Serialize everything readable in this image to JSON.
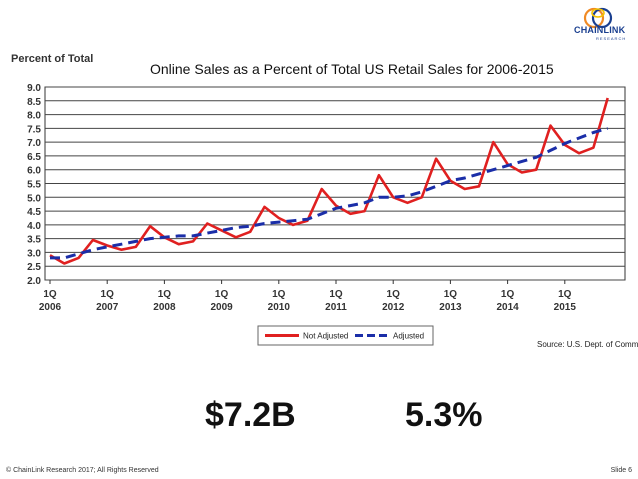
{
  "logo": {
    "text": "CHAINLINK",
    "subtext": "RESEARCH"
  },
  "chart_data": {
    "type": "line",
    "title": "Online Sales as a Percent of Total US Retail Sales for 2006-2015",
    "ylabel": "Percent of Total",
    "xlabel": "",
    "ylim": [
      2.0,
      9.0
    ],
    "yticks": [
      "9.0",
      "8.5",
      "8.0",
      "7.5",
      "7.0",
      "6.5",
      "6.0",
      "5.5",
      "5.0",
      "4.5",
      "4.0",
      "3.5",
      "3.0",
      "2.5",
      "2.0"
    ],
    "xticks": [
      {
        "q": "1Q",
        "year": "2006"
      },
      {
        "q": "1Q",
        "year": "2007"
      },
      {
        "q": "1Q",
        "year": "2008"
      },
      {
        "q": "1Q",
        "year": "2009"
      },
      {
        "q": "1Q",
        "year": "2010"
      },
      {
        "q": "1Q",
        "year": "2011"
      },
      {
        "q": "1Q",
        "year": "2012"
      },
      {
        "q": "1Q",
        "year": "2013"
      },
      {
        "q": "1Q",
        "year": "2014"
      },
      {
        "q": "1Q",
        "year": "2015"
      }
    ],
    "grid": true,
    "legend_position": "bottom-center",
    "series": [
      {
        "name": "Not Adjusted",
        "color": "#e02020",
        "style": "solid",
        "values": [
          2.9,
          2.6,
          2.8,
          3.45,
          3.25,
          3.1,
          3.2,
          3.95,
          3.55,
          3.3,
          3.4,
          4.05,
          3.8,
          3.55,
          3.75,
          4.65,
          4.25,
          4.0,
          4.15,
          5.3,
          4.7,
          4.4,
          4.5,
          5.8,
          5.0,
          4.8,
          5.0,
          6.4,
          5.6,
          5.3,
          5.4,
          7.0,
          6.2,
          5.9,
          6.0,
          7.6,
          6.9,
          6.6,
          6.8,
          8.6
        ]
      },
      {
        "name": "Adjusted",
        "color": "#1b2ea8",
        "style": "dashed",
        "values": [
          2.8,
          2.8,
          2.95,
          3.1,
          3.2,
          3.3,
          3.4,
          3.5,
          3.55,
          3.6,
          3.6,
          3.7,
          3.8,
          3.9,
          3.95,
          4.05,
          4.1,
          4.15,
          4.2,
          4.4,
          4.6,
          4.7,
          4.8,
          5.0,
          5.0,
          5.05,
          5.2,
          5.4,
          5.6,
          5.7,
          5.85,
          6.0,
          6.15,
          6.3,
          6.45,
          6.7,
          6.95,
          7.15,
          7.35,
          7.5
        ]
      }
    ]
  },
  "source": "Source: U.S. Dept. of Comm",
  "stats": {
    "value1": "$7.2B",
    "value2": "5.3%"
  },
  "footer": {
    "left": "© ChainLink Research 2017; All Rights Reserved",
    "right": "Slide 6"
  }
}
